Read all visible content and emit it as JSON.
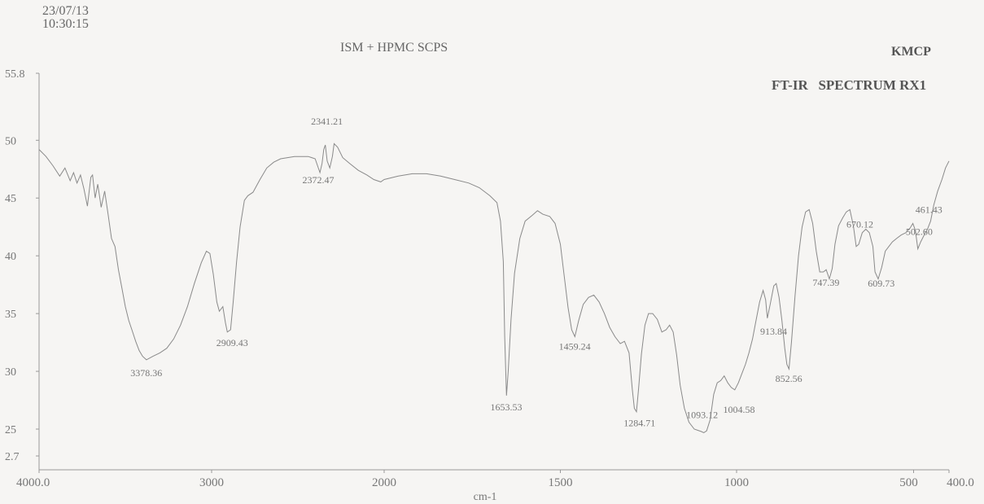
{
  "header": {
    "date": "23/07/13",
    "time": "10:30:15",
    "sample": "ISM + HPMC SCPS",
    "org": "KMCP",
    "spectrum": "FT-IR   SPECTRUM RX1"
  },
  "chart_data": {
    "type": "line",
    "title": "ISM + HPMC SCPS",
    "xlabel": "cm-1",
    "ylabel": "",
    "xlim": [
      4000,
      400
    ],
    "ylim": [
      2.7,
      55.8
    ],
    "x_ticks": [
      {
        "v": 4000,
        "label": "4000.0"
      },
      {
        "v": 3000,
        "label": "3000"
      },
      {
        "v": 2000,
        "label": "2000"
      },
      {
        "v": 1500,
        "label": "1500"
      },
      {
        "v": 1000,
        "label": "1000"
      },
      {
        "v": 500,
        "label": "500"
      },
      {
        "v": 400,
        "label": "400.0"
      }
    ],
    "y_ticks": [
      {
        "v": 55.8,
        "label": "55.8"
      },
      {
        "v": 50,
        "label": "50"
      },
      {
        "v": 45,
        "label": "45"
      },
      {
        "v": 40,
        "label": "40"
      },
      {
        "v": 35,
        "label": "35"
      },
      {
        "v": 30,
        "label": "30"
      },
      {
        "v": 25,
        "label": "25"
      },
      {
        "v": 2.7,
        "label": "2.7"
      }
    ],
    "series": [
      {
        "name": "",
        "points": [
          [
            4000,
            49.2
          ],
          [
            3960,
            48.6
          ],
          [
            3920,
            47.8
          ],
          [
            3880,
            46.9
          ],
          [
            3850,
            47.6
          ],
          [
            3820,
            46.5
          ],
          [
            3800,
            47.2
          ],
          [
            3780,
            46.3
          ],
          [
            3760,
            47.0
          ],
          [
            3740,
            45.8
          ],
          [
            3720,
            44.3
          ],
          [
            3700,
            46.8
          ],
          [
            3690,
            47.0
          ],
          [
            3675,
            45.0
          ],
          [
            3660,
            46.2
          ],
          [
            3640,
            44.2
          ],
          [
            3620,
            45.6
          ],
          [
            3600,
            43.6
          ],
          [
            3580,
            41.5
          ],
          [
            3560,
            40.8
          ],
          [
            3540,
            38.8
          ],
          [
            3520,
            37.2
          ],
          [
            3500,
            35.6
          ],
          [
            3480,
            34.4
          ],
          [
            3460,
            33.5
          ],
          [
            3440,
            32.6
          ],
          [
            3420,
            31.8
          ],
          [
            3400,
            31.3
          ],
          [
            3378,
            31.0
          ],
          [
            3340,
            31.3
          ],
          [
            3300,
            31.6
          ],
          [
            3260,
            32.0
          ],
          [
            3220,
            32.8
          ],
          [
            3180,
            34.0
          ],
          [
            3140,
            35.6
          ],
          [
            3100,
            37.6
          ],
          [
            3060,
            39.4
          ],
          [
            3030,
            40.4
          ],
          [
            3010,
            40.2
          ],
          [
            2990,
            38.4
          ],
          [
            2970,
            36.0
          ],
          [
            2955,
            35.2
          ],
          [
            2935,
            35.6
          ],
          [
            2920,
            34.2
          ],
          [
            2909,
            33.4
          ],
          [
            2890,
            33.6
          ],
          [
            2875,
            36.0
          ],
          [
            2855,
            39.5
          ],
          [
            2835,
            42.5
          ],
          [
            2810,
            44.8
          ],
          [
            2790,
            45.2
          ],
          [
            2760,
            45.5
          ],
          [
            2720,
            46.6
          ],
          [
            2680,
            47.6
          ],
          [
            2640,
            48.1
          ],
          [
            2600,
            48.4
          ],
          [
            2560,
            48.5
          ],
          [
            2520,
            48.6
          ],
          [
            2480,
            48.6
          ],
          [
            2440,
            48.6
          ],
          [
            2400,
            48.4
          ],
          [
            2372,
            47.2
          ],
          [
            2360,
            48.0
          ],
          [
            2350,
            49.2
          ],
          [
            2341,
            49.6
          ],
          [
            2330,
            48.2
          ],
          [
            2315,
            47.6
          ],
          [
            2300,
            48.6
          ],
          [
            2290,
            49.7
          ],
          [
            2270,
            49.4
          ],
          [
            2240,
            48.5
          ],
          [
            2200,
            48.0
          ],
          [
            2150,
            47.4
          ],
          [
            2100,
            47.0
          ],
          [
            2060,
            46.6
          ],
          [
            2020,
            46.4
          ],
          [
            2000,
            46.6
          ],
          [
            1960,
            46.9
          ],
          [
            1920,
            47.1
          ],
          [
            1880,
            47.1
          ],
          [
            1840,
            46.9
          ],
          [
            1800,
            46.6
          ],
          [
            1760,
            46.3
          ],
          [
            1730,
            45.9
          ],
          [
            1700,
            45.2
          ],
          [
            1680,
            44.6
          ],
          [
            1670,
            43.0
          ],
          [
            1662,
            39.5
          ],
          [
            1658,
            33.0
          ],
          [
            1653,
            27.9
          ],
          [
            1648,
            30.0
          ],
          [
            1640,
            34.5
          ],
          [
            1630,
            38.5
          ],
          [
            1615,
            41.5
          ],
          [
            1600,
            43.0
          ],
          [
            1580,
            43.5
          ],
          [
            1565,
            43.9
          ],
          [
            1550,
            43.6
          ],
          [
            1530,
            43.4
          ],
          [
            1515,
            42.8
          ],
          [
            1500,
            41.0
          ],
          [
            1490,
            38.5
          ],
          [
            1478,
            35.5
          ],
          [
            1468,
            33.6
          ],
          [
            1459,
            33.0
          ],
          [
            1448,
            34.4
          ],
          [
            1435,
            35.8
          ],
          [
            1420,
            36.4
          ],
          [
            1405,
            36.6
          ],
          [
            1390,
            36.0
          ],
          [
            1375,
            35.0
          ],
          [
            1360,
            33.8
          ],
          [
            1345,
            33.0
          ],
          [
            1330,
            32.4
          ],
          [
            1318,
            32.6
          ],
          [
            1305,
            31.6
          ],
          [
            1296,
            28.5
          ],
          [
            1290,
            26.8
          ],
          [
            1284,
            26.5
          ],
          [
            1278,
            28.5
          ],
          [
            1270,
            31.5
          ],
          [
            1260,
            34.0
          ],
          [
            1250,
            35.0
          ],
          [
            1238,
            35.0
          ],
          [
            1225,
            34.5
          ],
          [
            1212,
            33.4
          ],
          [
            1200,
            33.6
          ],
          [
            1190,
            34.0
          ],
          [
            1180,
            33.4
          ],
          [
            1170,
            31.4
          ],
          [
            1160,
            28.8
          ],
          [
            1148,
            26.8
          ],
          [
            1135,
            25.6
          ],
          [
            1120,
            25.0
          ],
          [
            1110,
            24.0
          ],
          [
            1100,
            23.0
          ],
          [
            1093,
            22.0
          ],
          [
            1085,
            23.5
          ],
          [
            1075,
            25.8
          ],
          [
            1065,
            28.0
          ],
          [
            1055,
            29.0
          ],
          [
            1045,
            29.2
          ],
          [
            1035,
            29.6
          ],
          [
            1025,
            29.0
          ],
          [
            1015,
            28.6
          ],
          [
            1005,
            28.4
          ],
          [
            995,
            29.0
          ],
          [
            985,
            29.8
          ],
          [
            975,
            30.6
          ],
          [
            965,
            31.6
          ],
          [
            955,
            32.8
          ],
          [
            945,
            34.4
          ],
          [
            935,
            36.0
          ],
          [
            925,
            37.0
          ],
          [
            918,
            36.2
          ],
          [
            913,
            34.6
          ],
          [
            905,
            35.8
          ],
          [
            895,
            37.4
          ],
          [
            888,
            37.6
          ],
          [
            880,
            36.4
          ],
          [
            872,
            34.4
          ],
          [
            864,
            32.0
          ],
          [
            858,
            30.6
          ],
          [
            852,
            30.2
          ],
          [
            845,
            32.5
          ],
          [
            835,
            36.5
          ],
          [
            825,
            40.0
          ],
          [
            815,
            42.5
          ],
          [
            805,
            43.8
          ],
          [
            795,
            44.0
          ],
          [
            785,
            42.8
          ],
          [
            775,
            40.4
          ],
          [
            765,
            38.6
          ],
          [
            755,
            38.6
          ],
          [
            747,
            38.8
          ],
          [
            738,
            38.0
          ],
          [
            730,
            38.9
          ],
          [
            722,
            41.0
          ],
          [
            712,
            42.6
          ],
          [
            700,
            43.3
          ],
          [
            690,
            43.8
          ],
          [
            680,
            44.0
          ],
          [
            670,
            42.6
          ],
          [
            662,
            40.8
          ],
          [
            655,
            41.0
          ],
          [
            645,
            42.0
          ],
          [
            635,
            42.3
          ],
          [
            625,
            42.0
          ],
          [
            615,
            40.8
          ],
          [
            609,
            38.6
          ],
          [
            600,
            38.0
          ],
          [
            590,
            39.0
          ],
          [
            580,
            40.4
          ],
          [
            570,
            40.8
          ],
          [
            560,
            41.2
          ],
          [
            548,
            41.5
          ],
          [
            535,
            41.8
          ],
          [
            522,
            42.0
          ],
          [
            510,
            42.4
          ],
          [
            502,
            42.8
          ],
          [
            495,
            42.2
          ],
          [
            488,
            40.6
          ],
          [
            480,
            41.2
          ],
          [
            470,
            41.8
          ],
          [
            461,
            42.3
          ],
          [
            452,
            43.0
          ],
          [
            443,
            44.4
          ],
          [
            432,
            45.6
          ],
          [
            420,
            46.6
          ],
          [
            410,
            47.6
          ],
          [
            400,
            48.2
          ]
        ]
      }
    ],
    "peak_labels": [
      {
        "label": "3378.36",
        "x": 3378.36,
        "y": 31.0
      },
      {
        "label": "2909.43",
        "x": 2909.43,
        "y": 33.4
      },
      {
        "label": "2372.47",
        "x": 2372.47,
        "y": 47.2
      },
      {
        "label": "2341.21",
        "x": 2341.21,
        "y": 49.6
      },
      {
        "label": "1653.53",
        "x": 1653.53,
        "y": 27.9
      },
      {
        "label": "1459.24",
        "x": 1459.24,
        "y": 33.0
      },
      {
        "label": "1284.71",
        "x": 1284.71,
        "y": 26.5
      },
      {
        "label": "1093.12",
        "x": 1093.12,
        "y": 22.0
      },
      {
        "label": "1004.58",
        "x": 1004.58,
        "y": 28.4
      },
      {
        "label": "913.84",
        "x": 913.84,
        "y": 34.6
      },
      {
        "label": "852.56",
        "x": 852.56,
        "y": 30.2
      },
      {
        "label": "747.39",
        "x": 747.39,
        "y": 38.8
      },
      {
        "label": "670.12",
        "x": 670.12,
        "y": 42.6
      },
      {
        "label": "609.73",
        "x": 609.73,
        "y": 38.6
      },
      {
        "label": "502.60",
        "x": 502.6,
        "y": 42.8
      },
      {
        "label": "461.43",
        "x": 461.43,
        "y": 42.3
      }
    ]
  }
}
